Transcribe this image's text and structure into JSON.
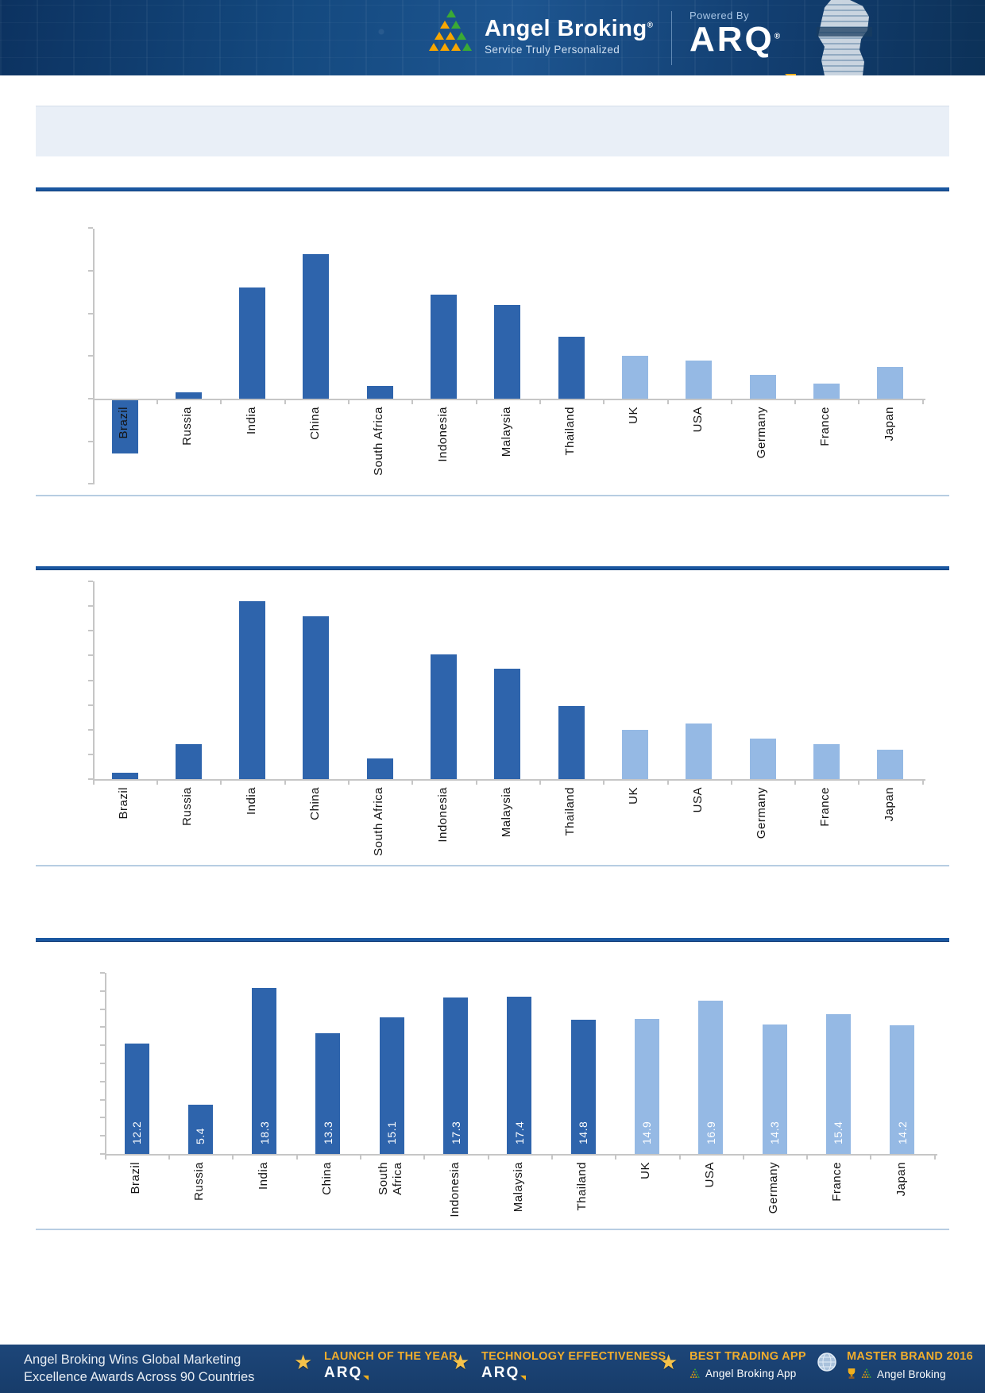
{
  "header": {
    "brand": "Angel Broking",
    "registered_mark": "®",
    "tagline": "Service Truly Personalized",
    "powered_by_label": "Powered By",
    "powered_brand": "ARQ"
  },
  "title_banner": {
    "text": ""
  },
  "colors": {
    "header_navy": "#14497f",
    "footer_navy": "#1b4173",
    "bar_dark_blue": "#2e64ac",
    "bar_light_blue": "#95b9e4",
    "rule_dark_blue": "#1a57a0",
    "rule_light_blue": "#b7cde2",
    "axis_gray": "#c6c6c6",
    "gold_accent": "#f0ad2d"
  },
  "chart_data": [
    {
      "type": "bar",
      "title": "",
      "categories": [
        "Brazil",
        "Russia",
        "India",
        "China",
        "South Africa",
        "Indonesia",
        "Malaysia",
        "Thailand",
        "UK",
        "USA",
        "Germany",
        "France",
        "Japan"
      ],
      "values": [
        -1.25,
        0.15,
        2.6,
        3.4,
        0.3,
        2.45,
        2.2,
        1.45,
        1.0,
        0.9,
        0.55,
        0.35,
        0.75
      ],
      "ylim": [
        -2,
        4
      ],
      "tick_step": 1,
      "y_tick_labels_visible": false,
      "value_labels_visible": false,
      "grid": false,
      "legend": "none",
      "note": "values estimated from unlabeled gridline divisions; first 8 bars dark blue, last 5 light blue"
    },
    {
      "type": "bar",
      "title": "",
      "categories": [
        "Brazil",
        "Russia",
        "India",
        "China",
        "South Africa",
        "Indonesia",
        "Malaysia",
        "Thailand",
        "UK",
        "USA",
        "Germany",
        "France",
        "Japan"
      ],
      "values": [
        0.25,
        1.4,
        7.2,
        6.6,
        0.85,
        5.05,
        4.45,
        2.95,
        2.0,
        2.25,
        1.65,
        1.4,
        1.2
      ],
      "ylim": [
        0,
        8
      ],
      "tick_step": 1,
      "y_tick_labels_visible": false,
      "value_labels_visible": false,
      "grid": false,
      "legend": "none",
      "note": "values estimated from unlabeled gridline divisions; first 8 bars dark blue, last 5 light blue"
    },
    {
      "type": "bar",
      "title": "",
      "categories": [
        "Brazil",
        "Russia",
        "India",
        "China",
        "South\nAfrica",
        "Indonesia",
        "Malaysia",
        "Thailand",
        "UK",
        "USA",
        "Germany",
        "France",
        "Japan"
      ],
      "values": [
        12.2,
        5.4,
        18.3,
        13.3,
        15.1,
        17.3,
        17.4,
        14.8,
        14.9,
        16.9,
        14.3,
        15.4,
        14.2
      ],
      "value_labels": [
        "12.2",
        "5.4",
        "18.3",
        "13.3",
        "15.1",
        "17.3",
        "17.4",
        "14.8",
        "14.9",
        "16.9",
        "14.3",
        "15.4",
        "14.2"
      ],
      "ylim": [
        0,
        20
      ],
      "tick_step": 2,
      "y_tick_labels_visible": false,
      "value_labels_visible": true,
      "grid": false,
      "legend": "none",
      "note": "white value labels printed vertically inside bar bases; first 8 bars dark blue, last 5 light blue"
    }
  ],
  "footer": {
    "left_line1": "Angel Broking Wins Global Marketing",
    "left_line2": "Excellence Awards Across 90 Countries",
    "awards": [
      {
        "icon": "star-trophy-icon",
        "title": "LAUNCH OF THE YEAR",
        "subtitle": "ARQ"
      },
      {
        "icon": "star-trophy-icon",
        "title": "TECHNOLOGY EFFECTIVENESS",
        "subtitle": "ARQ"
      },
      {
        "icon": "star-trophy-icon",
        "title": "BEST TRADING APP",
        "subtitle": "Angel Broking App"
      },
      {
        "icon": "globe-icon",
        "title": "MASTER BRAND 2016",
        "subtitle": "Angel Broking"
      }
    ]
  }
}
